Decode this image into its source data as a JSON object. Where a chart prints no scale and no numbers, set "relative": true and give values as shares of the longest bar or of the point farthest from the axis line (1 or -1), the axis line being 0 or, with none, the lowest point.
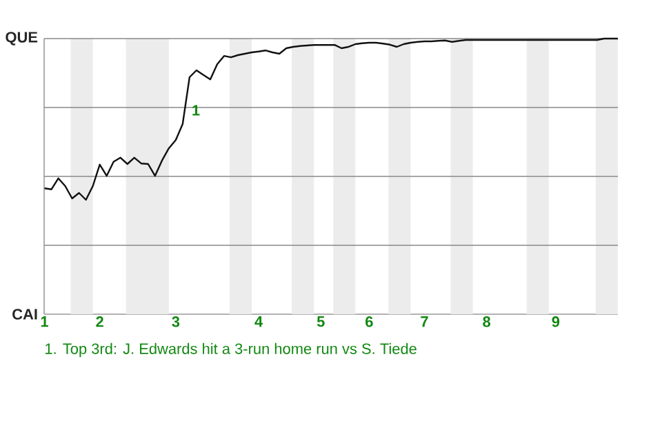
{
  "chart_data": {
    "type": "line",
    "relative": true,
    "categories": [
      "1",
      null,
      null,
      null,
      null,
      null,
      null,
      null,
      "2",
      null,
      null,
      null,
      null,
      null,
      null,
      null,
      null,
      null,
      null,
      "3",
      null,
      null,
      null,
      null,
      null,
      null,
      null,
      null,
      null,
      null,
      null,
      "4",
      null,
      null,
      null,
      null,
      null,
      null,
      null,
      null,
      "5",
      null,
      null,
      null,
      null,
      null,
      null,
      "6",
      null,
      null,
      null,
      null,
      null,
      null,
      null,
      "7",
      null,
      null,
      null,
      null,
      null,
      null,
      null,
      null,
      "8",
      null,
      null,
      null,
      null,
      null,
      null,
      null,
      null,
      null,
      "9",
      null,
      null,
      null,
      null,
      null,
      null,
      null,
      null,
      null
    ],
    "series": [
      {
        "color": "#111111",
        "values": [
          0.457,
          0.453,
          0.493,
          0.465,
          0.42,
          0.44,
          0.415,
          0.465,
          0.543,
          0.502,
          0.553,
          0.568,
          0.545,
          0.568,
          0.547,
          0.545,
          0.502,
          0.557,
          0.602,
          0.632,
          0.69,
          0.86,
          0.885,
          0.868,
          0.852,
          0.907,
          0.937,
          0.932,
          0.94,
          0.945,
          0.95,
          0.953,
          0.957,
          0.95,
          0.945,
          0.965,
          0.97,
          0.973,
          0.975,
          0.977,
          0.977,
          0.977,
          0.977,
          0.965,
          0.97,
          0.98,
          0.983,
          0.985,
          0.985,
          0.982,
          0.978,
          0.97,
          0.98,
          0.985,
          0.988,
          0.99,
          0.99,
          0.992,
          0.993,
          0.988,
          0.992,
          0.995,
          0.995,
          0.995,
          0.995,
          0.995,
          0.995,
          0.995,
          0.995,
          0.995,
          0.995,
          0.995,
          0.995,
          0.995,
          0.995,
          0.995,
          0.995,
          0.995,
          0.995,
          0.995,
          0.995,
          1,
          1,
          1
        ]
      }
    ],
    "ref_lines": [
      {
        "axis": "y",
        "value": 0.25,
        "color": "#888888"
      },
      {
        "axis": "y",
        "value": 0.5,
        "color": "#888888"
      },
      {
        "axis": "y",
        "value": 0.75,
        "color": "#888888"
      },
      {
        "axis": "y",
        "value": 1,
        "color": "#888888"
      }
    ],
    "annotations": [
      "QUE",
      "CAI",
      "1",
      "1. Top 3rd: J. Edwards hit a 3-run home run vs S. Tiede"
    ]
  }
}
